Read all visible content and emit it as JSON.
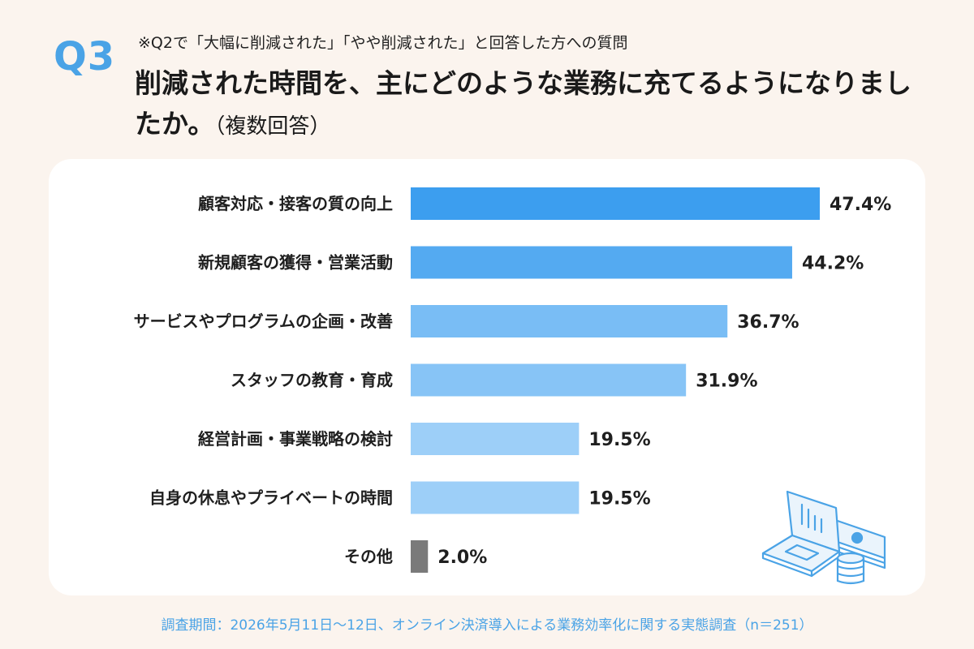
{
  "header": {
    "q_label": "Q3",
    "note": "※Q2で「大幅に削減された」「やや削減された」と回答した方への質問",
    "title_main": "削減された時間を、主にどのような業務に充てるようになりましたか。",
    "title_sub": "（複数回答）"
  },
  "footer": {
    "source": "調査期間：2026年5月11日～12日、オンライン決済導入による業務効率化に関する実態調査（n＝251）"
  },
  "chart_data": {
    "type": "bar",
    "orientation": "horizontal",
    "categories": [
      "顧客対応・接客の質の向上",
      "新規顧客の獲得・営業活動",
      "サービスやプログラムの企画・改善",
      "スタッフの教育・育成",
      "経営計画・事業戦略の検討",
      "自身の休息やプライベートの時間",
      "その他"
    ],
    "values": [
      47.4,
      44.2,
      36.7,
      31.9,
      19.5,
      19.5,
      2.0
    ],
    "value_labels": [
      "47.4%",
      "44.2%",
      "36.7%",
      "31.9%",
      "19.5%",
      "19.5%",
      "2.0%"
    ],
    "bar_colors": [
      "#3c9eef",
      "#54aaf1",
      "#79bdf5",
      "#87c4f6",
      "#9dcff8",
      "#9dcff8",
      "#7a7a7a"
    ],
    "xlim": [
      0,
      47.4
    ],
    "grid": false,
    "legend": "none"
  },
  "illustration": {
    "icon": "laptop-chart-coins-icon",
    "line_color": "#4aa3e6",
    "fill_color": "#eaf4fc"
  }
}
